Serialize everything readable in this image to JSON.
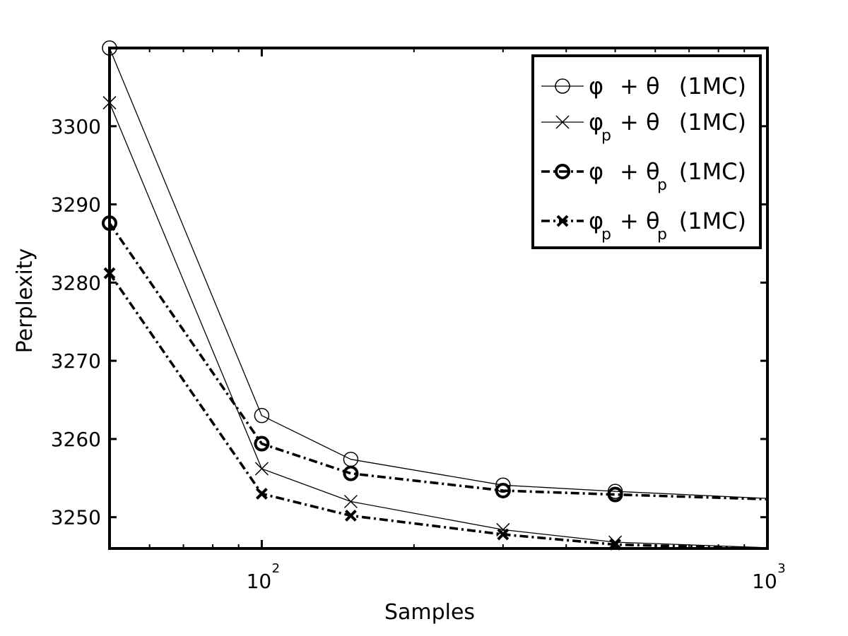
{
  "chart_data": {
    "type": "line",
    "title": "",
    "xlabel": "Samples",
    "ylabel": "Perplexity",
    "xscale": "log",
    "xlim": [
      50,
      1000
    ],
    "ylim": [
      3246,
      3310
    ],
    "x_ticks": [
      {
        "value": 100,
        "base": "10",
        "exp": "2"
      },
      {
        "value": 1000,
        "base": "10",
        "exp": "3"
      }
    ],
    "y_ticks": [
      3250,
      3260,
      3270,
      3280,
      3290,
      3300
    ],
    "legend_position": "top-right",
    "series": [
      {
        "name": "phi + theta (1MC)",
        "style": "solid-thin",
        "marker": "circle",
        "x": [
          50,
          100,
          150,
          300,
          500,
          1000
        ],
        "y": [
          3310,
          3263,
          3257.4,
          3254.1,
          3253.3,
          3252.4
        ]
      },
      {
        "name": "phi_p + theta (1MC)",
        "style": "solid-thin",
        "marker": "x",
        "x": [
          50,
          100,
          150,
          300,
          500,
          1000
        ],
        "y": [
          3303,
          3256.2,
          3252.0,
          3248.4,
          3246.8,
          3246.1
        ]
      },
      {
        "name": "phi + theta_p (1MC)",
        "style": "dashdot-thick",
        "marker": "circle",
        "x": [
          50,
          100,
          150,
          300,
          500,
          1000
        ],
        "y": [
          3287.6,
          3259.4,
          3255.6,
          3253.4,
          3252.9,
          3252.3
        ]
      },
      {
        "name": "phi_p + theta_p (1MC)",
        "style": "dashdot-thick",
        "marker": "x",
        "x": [
          50,
          100,
          150,
          300,
          500,
          1000
        ],
        "y": [
          3281.2,
          3253.0,
          3250.2,
          3247.8,
          3246.5,
          3246.0
        ]
      }
    ],
    "legend": [
      {
        "a": "φ",
        "asub": "",
        "b": "+ θ",
        "bsub": "",
        "tail": "(1MC)"
      },
      {
        "a": "φ",
        "asub": "p",
        "b": "+ θ",
        "bsub": "",
        "tail": "(1MC)"
      },
      {
        "a": "φ",
        "asub": "",
        "b": "+ θ",
        "bsub": "p",
        "tail": "(1MC)"
      },
      {
        "a": "φ",
        "asub": "p",
        "b": "+ θ",
        "bsub": "p",
        "tail": "(1MC)"
      }
    ]
  }
}
